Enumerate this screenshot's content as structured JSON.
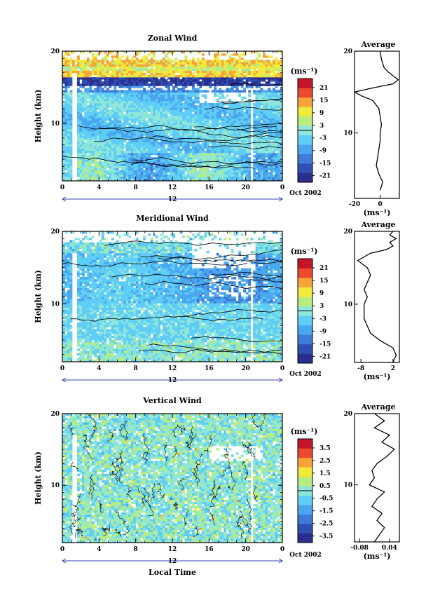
{
  "figure": {
    "xlabel": "Local Time",
    "date_label": "Oct 2002",
    "day_label": "12",
    "units_label": "(ms⁻¹)",
    "average_title": "Average"
  },
  "chart_data": [
    {
      "type": "heatmap",
      "title": "Zonal Wind",
      "ylabel": "Height (km)",
      "xlabel": "",
      "x_ticks": [
        "0",
        "4",
        "8",
        "12",
        "16",
        "20",
        "0"
      ],
      "xlim": [
        0,
        24
      ],
      "ylim": [
        2,
        20
      ],
      "y_ticks": [
        "10",
        "20"
      ],
      "colorbar_units": "(ms⁻¹)",
      "colorbar_ticks": [
        "21",
        "15",
        "9",
        "3",
        "-3",
        "-9",
        "-15",
        "-21"
      ],
      "colorbar_range": [
        -24,
        24
      ],
      "average_profile": {
        "title": "Average",
        "x_ticks": [
          "-20",
          "0"
        ],
        "xlim": [
          -20,
          15
        ],
        "xlabel": "(ms⁻¹)",
        "height": [
          3,
          4,
          5,
          6,
          7,
          8,
          9,
          10,
          11,
          12,
          13,
          14,
          14.5,
          15,
          15.5,
          16,
          16.5,
          17,
          17.5,
          18,
          19,
          20
        ],
        "value": [
          0,
          2,
          -1,
          -3,
          -2,
          -1,
          0,
          0,
          1,
          0,
          -1,
          -6,
          -14,
          -20,
          -6,
          10,
          14,
          10,
          6,
          3,
          1,
          0
        ]
      }
    },
    {
      "type": "heatmap",
      "title": "Meridional Wind",
      "ylabel": "Height (km)",
      "xlabel": "",
      "x_ticks": [
        "0",
        "4",
        "8",
        "12",
        "16",
        "20",
        "0"
      ],
      "xlim": [
        0,
        24
      ],
      "ylim": [
        2,
        20
      ],
      "y_ticks": [
        "10",
        "20"
      ],
      "colorbar_units": "(ms⁻¹)",
      "colorbar_ticks": [
        "21",
        "15",
        "9",
        "3",
        "-3",
        "-9",
        "-15",
        "-21"
      ],
      "colorbar_range": [
        -24,
        24
      ],
      "average_profile": {
        "title": "Average",
        "x_ticks": [
          "-8",
          "2"
        ],
        "xlim": [
          -10,
          4
        ],
        "xlabel": "(ms⁻¹)",
        "height": [
          2,
          3,
          4,
          5,
          6,
          7,
          8,
          9,
          10,
          11,
          12,
          13,
          14,
          15,
          16,
          17,
          17.5,
          18,
          18.5,
          19,
          19.5,
          20
        ],
        "value": [
          2,
          3,
          2,
          -2,
          -5,
          -6,
          -7,
          -7,
          -7,
          -6,
          -7,
          -6,
          -5,
          -6,
          -9,
          -5,
          0,
          2,
          1,
          3,
          1,
          2
        ]
      }
    },
    {
      "type": "heatmap",
      "title": "Vertical Wind",
      "ylabel": "Height (km)",
      "xlabel": "Local Time",
      "x_ticks": [
        "0",
        "4",
        "8",
        "12",
        "16",
        "20",
        "0"
      ],
      "xlim": [
        0,
        24
      ],
      "ylim": [
        2,
        20
      ],
      "y_ticks": [
        "10",
        "20"
      ],
      "colorbar_units": "(ms⁻¹)",
      "colorbar_ticks": [
        "3.5",
        "2.5",
        "1.5",
        "0.5",
        "-0.5",
        "-1.5",
        "-2.5",
        "-3.5"
      ],
      "colorbar_range": [
        -4,
        4
      ],
      "average_profile": {
        "title": "Average",
        "x_ticks": [
          "-0.08",
          "0.04"
        ],
        "xlim": [
          -0.1,
          0.08
        ],
        "xlabel": "(ms⁻¹)",
        "height": [
          2,
          3,
          4,
          5,
          6,
          7,
          8,
          9,
          10,
          11,
          12,
          13,
          14,
          15,
          16,
          17,
          18,
          19,
          20
        ],
        "value": [
          -0.02,
          0.0,
          0.02,
          -0.01,
          0.01,
          -0.03,
          -0.01,
          0.02,
          -0.04,
          -0.02,
          -0.03,
          -0.01,
          0.03,
          0.06,
          0.01,
          0.04,
          -0.02,
          0.02,
          -0.02
        ]
      }
    }
  ]
}
